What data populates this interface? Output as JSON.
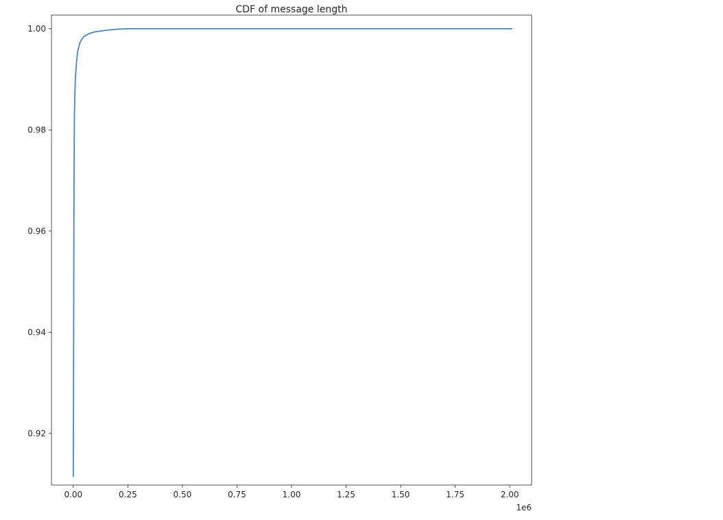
{
  "chart_data": {
    "type": "line",
    "title": "CDF of message length",
    "xlabel": "",
    "ylabel": "",
    "x_offset_label": "1e6",
    "xlim": [
      -0.1,
      2.1
    ],
    "ylim": [
      0.9098,
      1.0027
    ],
    "x_ticks": [
      0.0,
      0.25,
      0.5,
      0.75,
      1.0,
      1.25,
      1.5,
      1.75,
      2.0
    ],
    "x_tick_labels": [
      "0.00",
      "0.25",
      "0.50",
      "0.75",
      "1.00",
      "1.25",
      "1.50",
      "1.75",
      "2.00"
    ],
    "y_ticks": [
      0.92,
      0.94,
      0.96,
      0.98,
      1.0
    ],
    "y_tick_labels": [
      "0.92",
      "0.94",
      "0.96",
      "0.98",
      "1.00"
    ],
    "grid": false,
    "legend": "none",
    "line_color": "#4a86b8",
    "series": [
      {
        "x": [
          0.0,
          0.001,
          0.002,
          0.003,
          0.004,
          0.005,
          0.007,
          0.01,
          0.015,
          0.02,
          0.03,
          0.04,
          0.05,
          0.07,
          0.1,
          0.15,
          0.2,
          0.25,
          0.3,
          0.5,
          1.0,
          1.5,
          2.01
        ],
        "y": [
          0.9115,
          0.925,
          0.945,
          0.965,
          0.975,
          0.982,
          0.987,
          0.9905,
          0.9935,
          0.9955,
          0.9972,
          0.998,
          0.9985,
          0.999,
          0.9994,
          0.9997,
          0.9999,
          1.0,
          1.0,
          1.0,
          1.0,
          1.0,
          1.0
        ]
      }
    ]
  }
}
